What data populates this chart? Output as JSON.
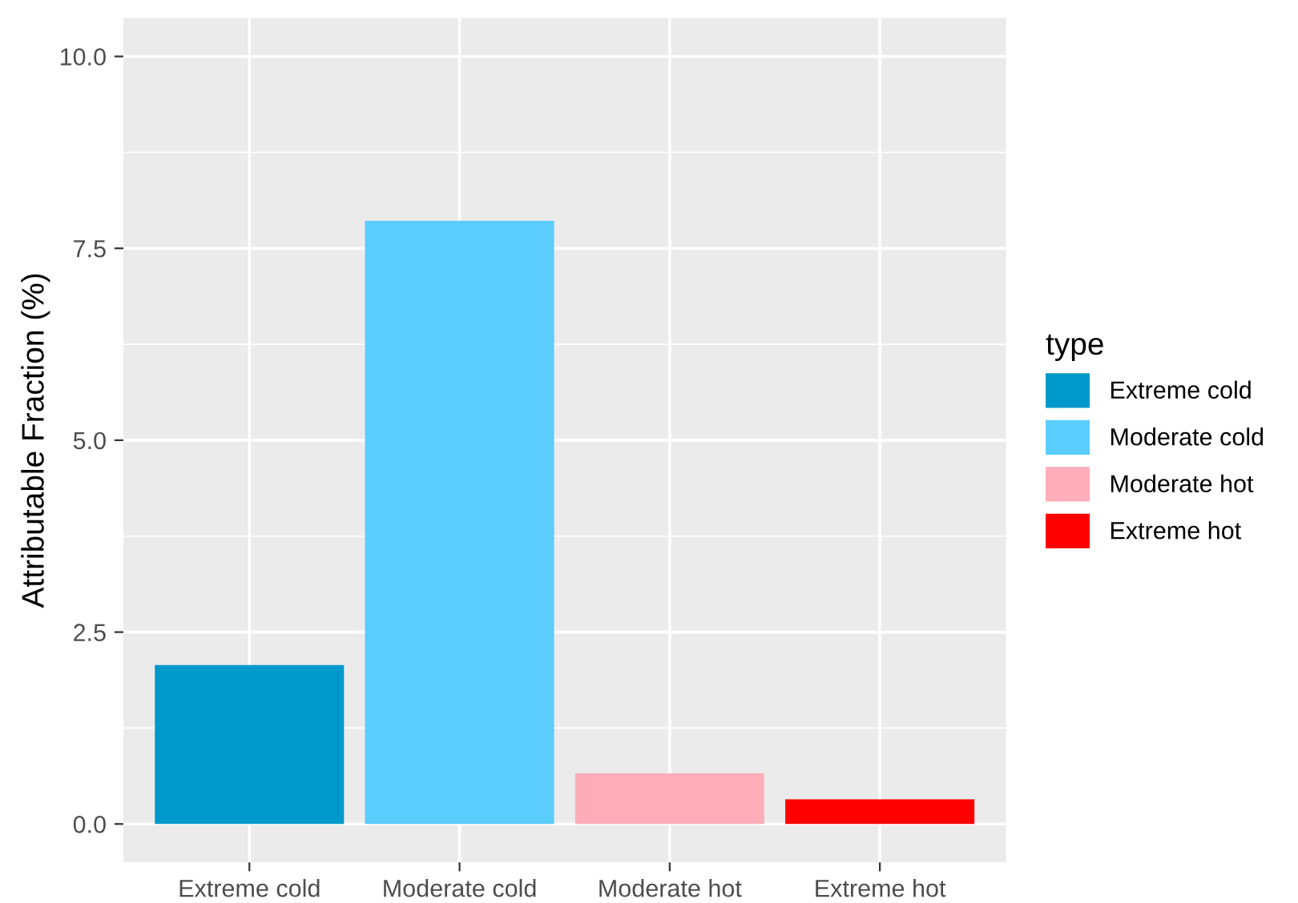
{
  "chart_data": {
    "type": "bar",
    "ylabel": "Attributable Fraction (%)",
    "legend_title": "type",
    "categories": [
      "Extreme cold",
      "Moderate cold",
      "Moderate hot",
      "Extreme hot"
    ],
    "series": [
      {
        "name": "Extreme cold",
        "color": "#0099cc",
        "values": [
          2.07,
          null,
          null,
          null
        ]
      },
      {
        "name": "Moderate cold",
        "color": "#5bcdfc",
        "values": [
          null,
          7.86,
          null,
          null
        ]
      },
      {
        "name": "Moderate hot",
        "color": "#ffadb9",
        "values": [
          null,
          null,
          0.66,
          null
        ]
      },
      {
        "name": "Extreme hot",
        "color": "#ff0000",
        "values": [
          null,
          null,
          null,
          0.32
        ]
      }
    ],
    "ylim": [
      -0.5,
      10.5
    ],
    "yticks": [
      {
        "value": 0,
        "label": "0.0"
      },
      {
        "value": 2.5,
        "label": "2.5"
      },
      {
        "value": 5,
        "label": "5.0"
      },
      {
        "value": 7.5,
        "label": "7.5"
      },
      {
        "value": 10,
        "label": "10.0"
      }
    ],
    "grid": true,
    "legend": "right"
  }
}
